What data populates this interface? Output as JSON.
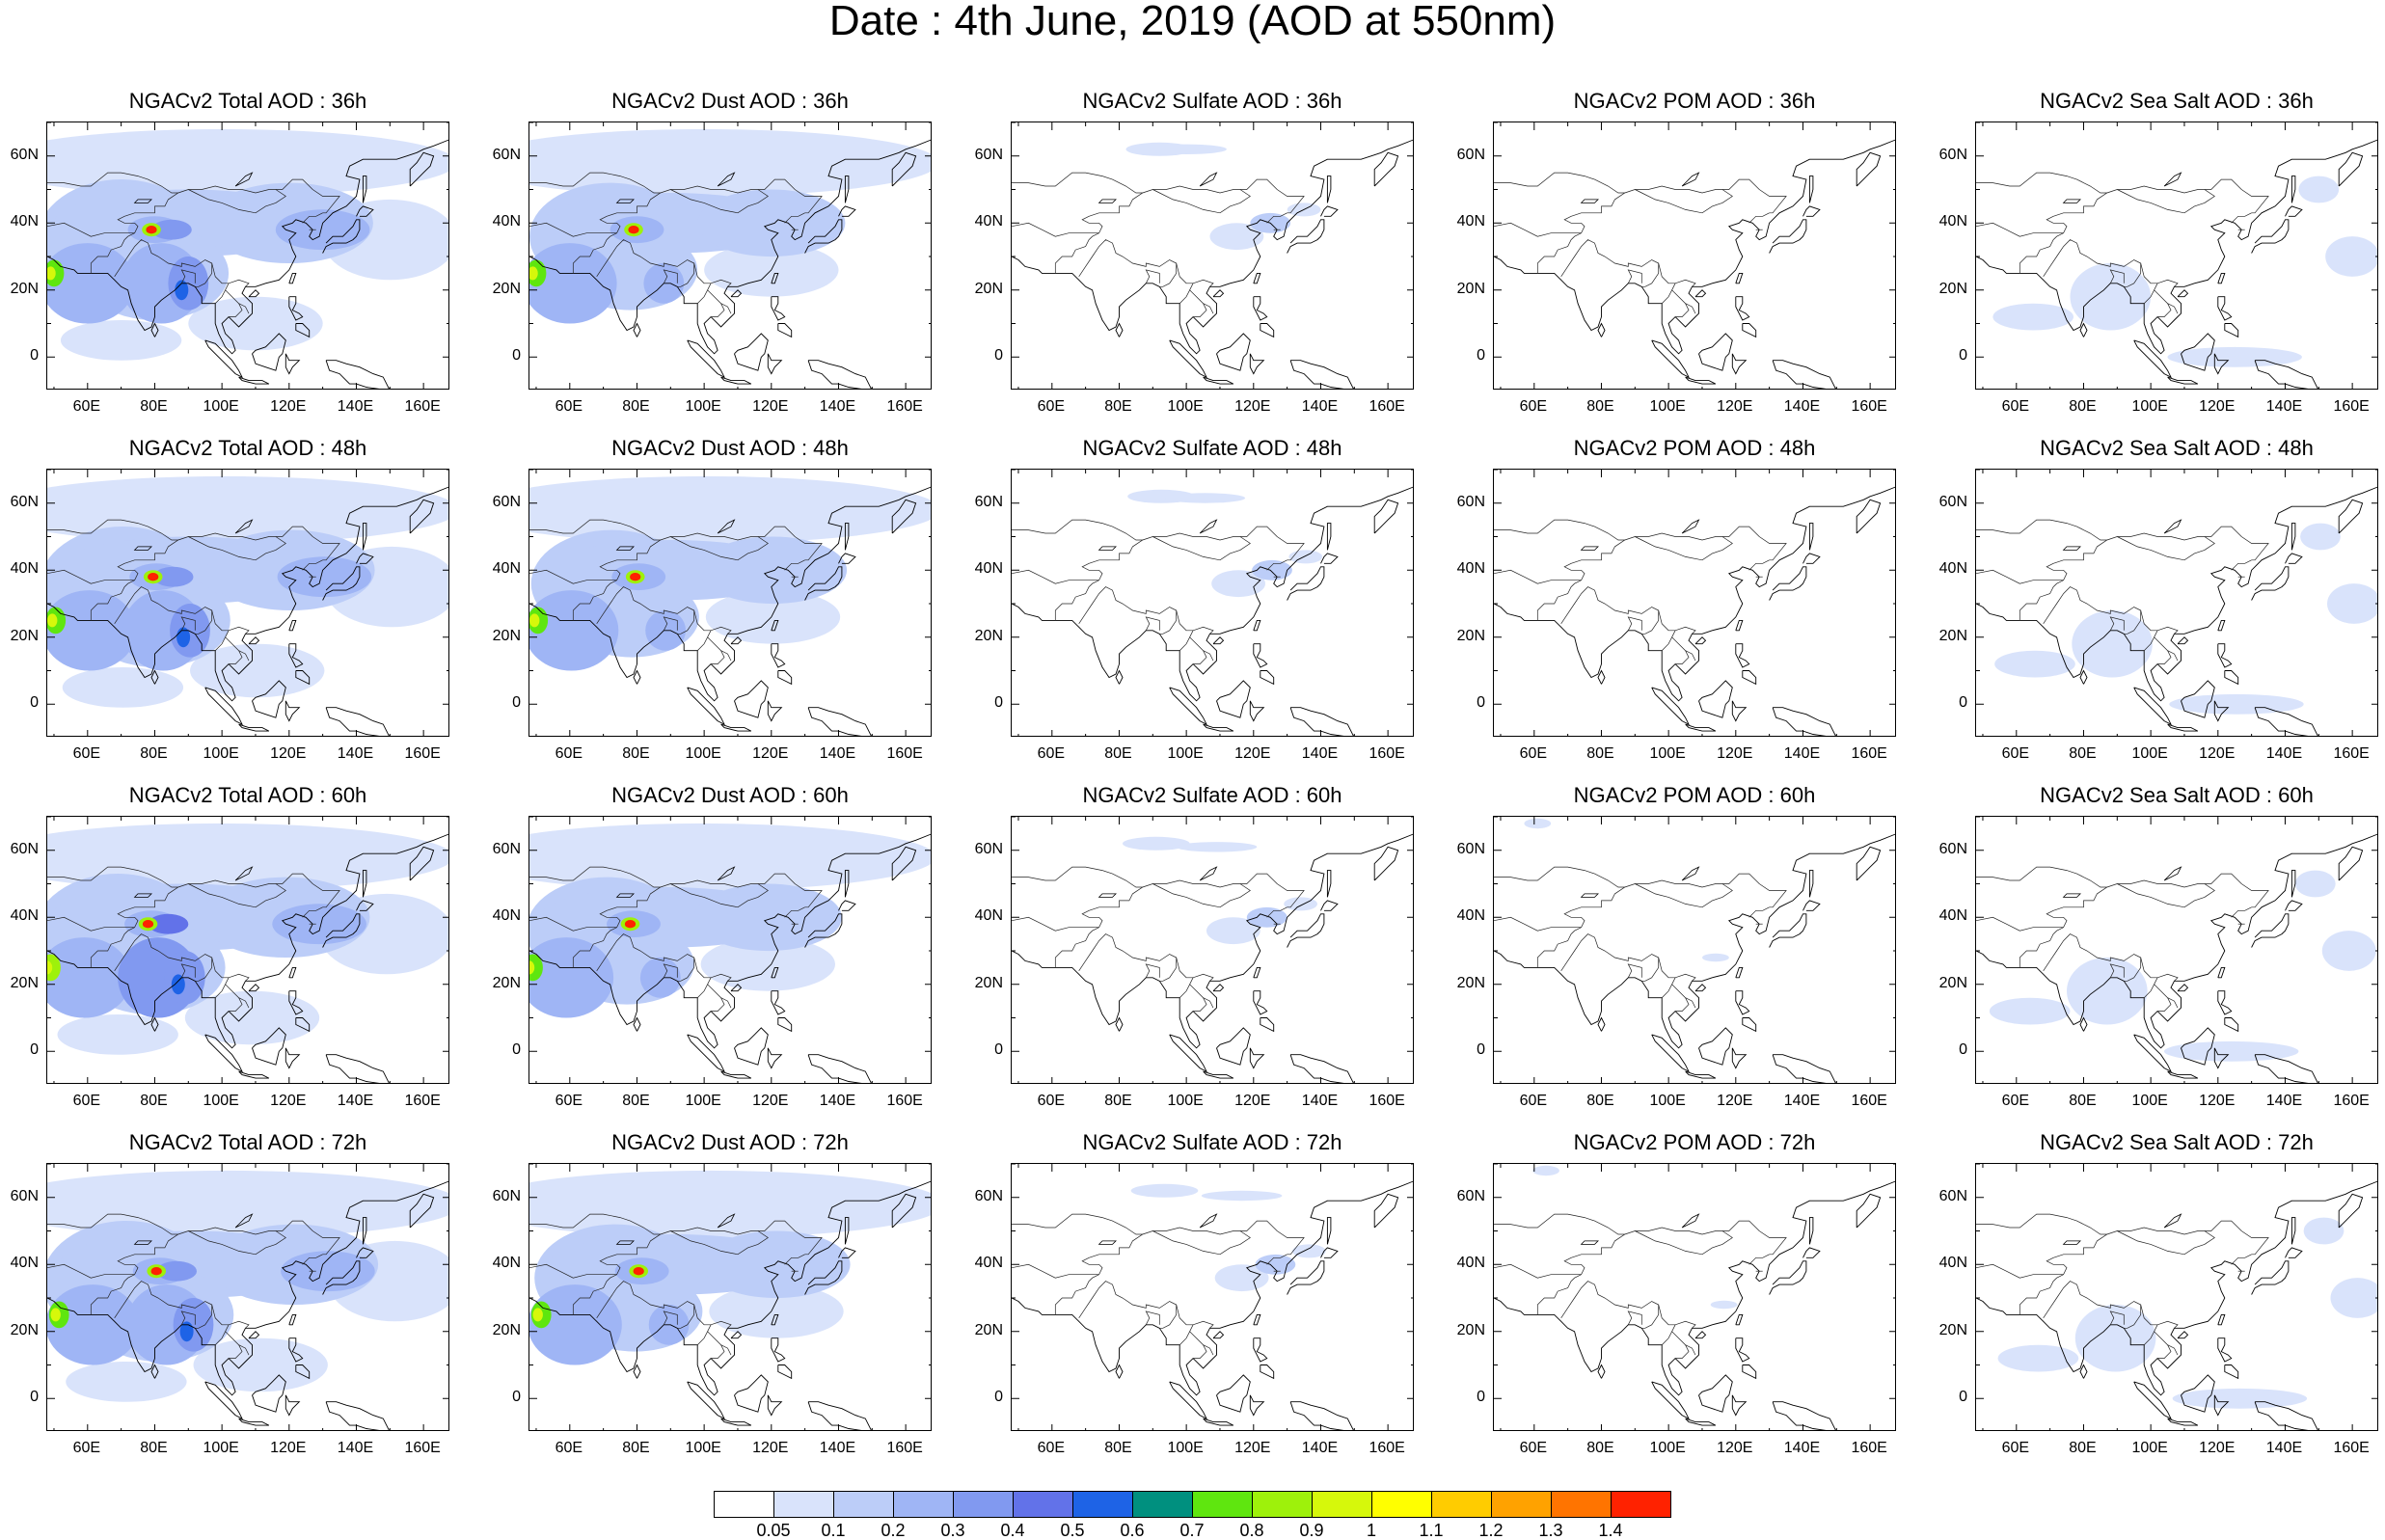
{
  "title": "Date : 4th June, 2019 (AOD at 550nm)",
  "rows": [
    {
      "panels": [
        {
          "title": "NGACv2 Total AOD : 36h",
          "species": "total"
        },
        {
          "title": "NGACv2 Dust AOD : 36h",
          "species": "dust"
        },
        {
          "title": "NGACv2 Sulfate AOD : 36h",
          "species": "sulfate"
        },
        {
          "title": "NGACv2 POM AOD : 36h",
          "species": "pom"
        },
        {
          "title": "NGACv2 Sea Salt AOD : 36h",
          "species": "seasalt"
        }
      ]
    },
    {
      "panels": [
        {
          "title": "NGACv2 Total AOD : 48h",
          "species": "total"
        },
        {
          "title": "NGACv2 Dust AOD : 48h",
          "species": "dust"
        },
        {
          "title": "NGACv2 Sulfate AOD : 48h",
          "species": "sulfate"
        },
        {
          "title": "NGACv2 POM AOD : 48h",
          "species": "pom"
        },
        {
          "title": "NGACv2 Sea Salt AOD : 48h",
          "species": "seasalt"
        }
      ]
    },
    {
      "panels": [
        {
          "title": "NGACv2 Total AOD : 60h",
          "species": "total"
        },
        {
          "title": "NGACv2 Dust AOD : 60h",
          "species": "dust"
        },
        {
          "title": "NGACv2 Sulfate AOD : 60h",
          "species": "sulfate"
        },
        {
          "title": "NGACv2 POM AOD : 60h",
          "species": "pom"
        },
        {
          "title": "NGACv2 Sea Salt AOD : 60h",
          "species": "seasalt"
        }
      ]
    },
    {
      "panels": [
        {
          "title": "NGACv2 Total AOD : 72h",
          "species": "total"
        },
        {
          "title": "NGACv2 Dust AOD : 72h",
          "species": "dust"
        },
        {
          "title": "NGACv2 Sulfate AOD : 72h",
          "species": "sulfate"
        },
        {
          "title": "NGACv2 POM AOD : 72h",
          "species": "pom"
        },
        {
          "title": "NGACv2 Sea Salt  AOD : 72h",
          "species": "seasalt"
        }
      ]
    }
  ],
  "lon_ticks": [
    "60E",
    "80E",
    "100E",
    "120E",
    "140E",
    "160E"
  ],
  "lat_ticks": [
    "60N",
    "40N",
    "20N",
    "0"
  ],
  "colorbar": {
    "colors": [
      "#ffffff",
      "#d9e3fb",
      "#bccdf8",
      "#9fb5f5",
      "#8199f0",
      "#6272e9",
      "#1e63e6",
      "#00907f",
      "#5fe60f",
      "#9ef10b",
      "#d6f80b",
      "#ffff00",
      "#ffcc00",
      "#ffa200",
      "#ff7400",
      "#ff2200"
    ],
    "labels": [
      "0.05",
      "0.1",
      "0.2",
      "0.3",
      "0.4",
      "0.5",
      "0.6",
      "0.7",
      "0.8",
      "0.9",
      "1",
      "1.1",
      "1.2",
      "1.3",
      "1.4"
    ]
  }
}
